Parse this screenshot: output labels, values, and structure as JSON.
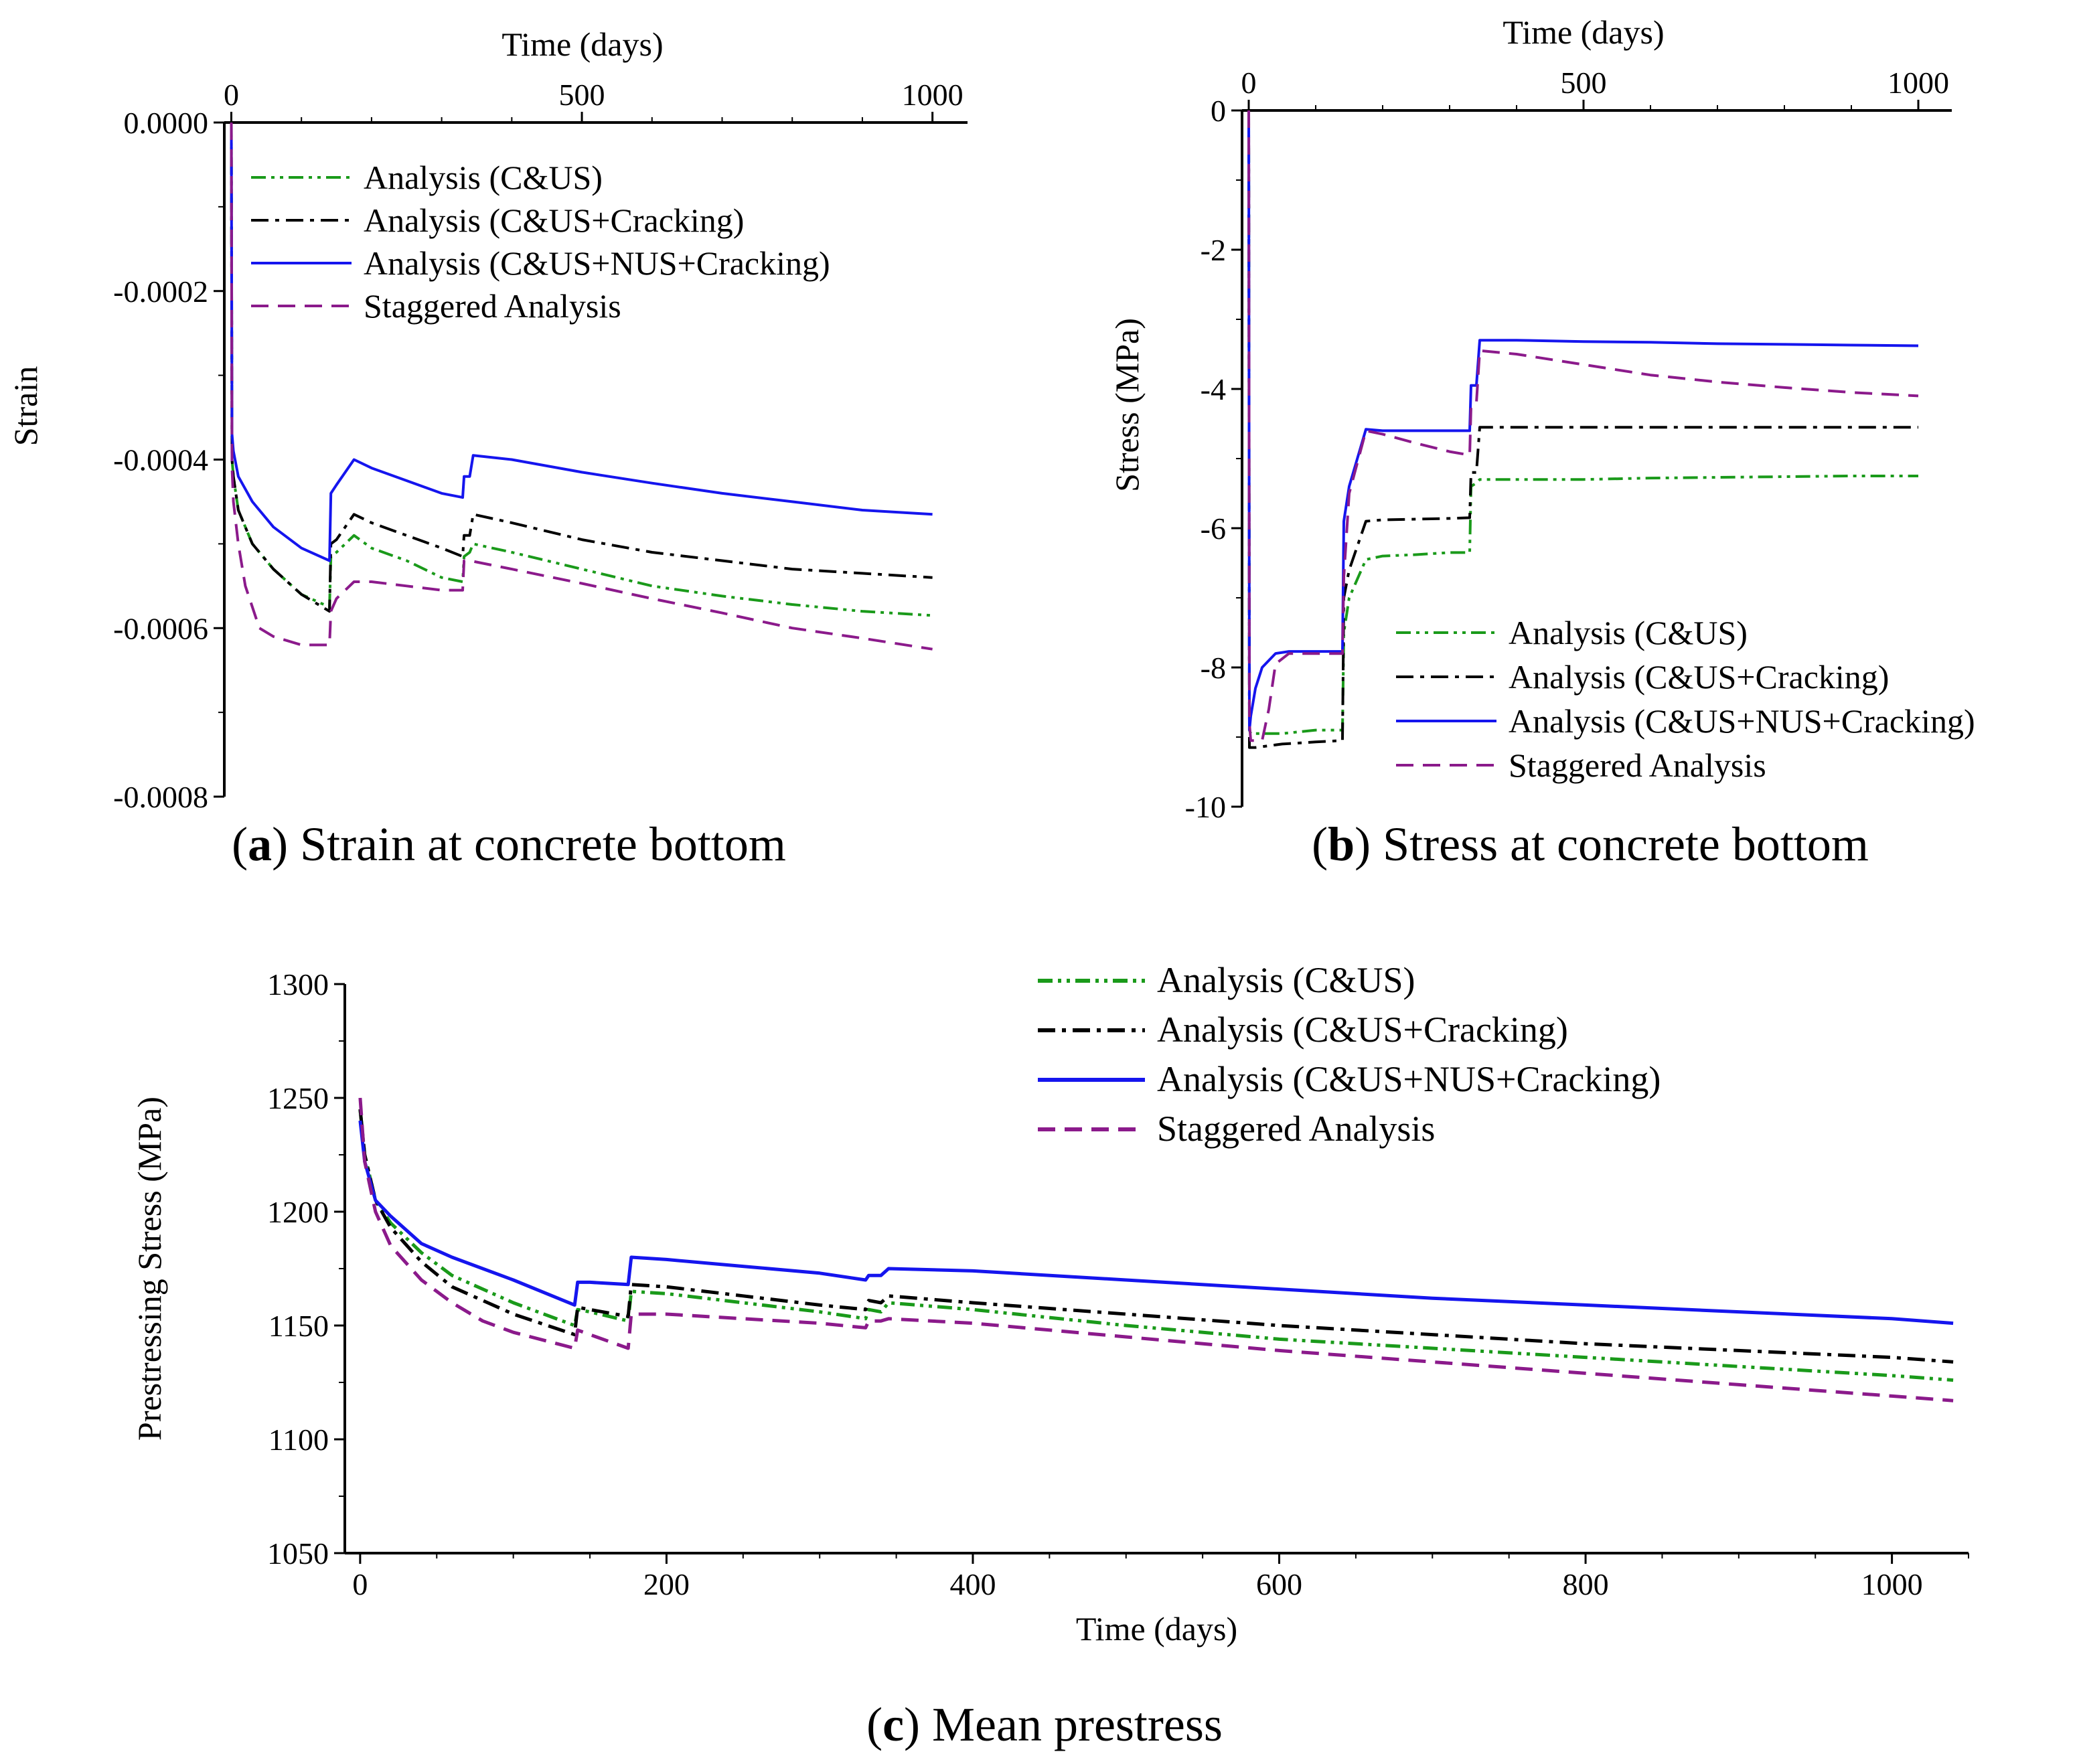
{
  "colors": {
    "cus": "#1a9a1a",
    "cracking": "#000000",
    "nus": "#1515ee",
    "staggered": "#8b1a8b"
  },
  "captions": {
    "a": {
      "letter": "a",
      "text": " Strain at concrete bottom"
    },
    "b": {
      "letter": "b",
      "text": " Stress at concrete bottom"
    },
    "c": {
      "letter": "c",
      "text": " Mean prestress"
    }
  },
  "chart_data": [
    {
      "id": "a",
      "type": "line",
      "xlabel": "Time (days)",
      "ylabel": "Strain",
      "xaxis_position": "top",
      "xlim": [
        -10,
        1050
      ],
      "ylim": [
        -0.0008,
        0.0
      ],
      "xticks": [
        0,
        500,
        1000
      ],
      "xtick_labels": [
        "0",
        "500",
        "1000"
      ],
      "yticks": [
        0,
        -0.0002,
        -0.0004,
        -0.0006,
        -0.0008
      ],
      "ytick_labels": [
        "0.0000",
        "-0.0002",
        "-0.0004",
        "-0.0006",
        "-0.0008"
      ],
      "grid": false,
      "legend_position": "top-left",
      "series": [
        {
          "name": "Analysis (C&US)",
          "key": "cus",
          "x": [
            0,
            1,
            3,
            10,
            30,
            60,
            100,
            140,
            142,
            150,
            175,
            200,
            250,
            300,
            330,
            332,
            340,
            345,
            400,
            500,
            600,
            700,
            800,
            900,
            1000
          ],
          "y": [
            0,
            -0.0004,
            -0.00042,
            -0.00046,
            -0.0005,
            -0.00053,
            -0.00056,
            -0.000575,
            -0.000515,
            -0.00051,
            -0.00049,
            -0.000505,
            -0.00052,
            -0.00054,
            -0.000545,
            -0.000515,
            -0.00051,
            -0.0005,
            -0.00051,
            -0.00053,
            -0.00055,
            -0.000562,
            -0.000572,
            -0.00058,
            -0.000585
          ]
        },
        {
          "name": "Analysis (C&US+Cracking)",
          "key": "cracking",
          "x": [
            0,
            1,
            3,
            10,
            30,
            60,
            100,
            140,
            142,
            150,
            175,
            200,
            250,
            300,
            330,
            332,
            340,
            345,
            400,
            500,
            600,
            700,
            800,
            900,
            1000
          ],
          "y": [
            0,
            -0.0004,
            -0.00042,
            -0.00046,
            -0.0005,
            -0.00053,
            -0.00056,
            -0.00058,
            -0.0005,
            -0.000495,
            -0.000465,
            -0.000475,
            -0.00049,
            -0.000505,
            -0.000515,
            -0.00049,
            -0.00049,
            -0.000465,
            -0.000475,
            -0.000495,
            -0.00051,
            -0.00052,
            -0.00053,
            -0.000535,
            -0.00054
          ]
        },
        {
          "name": "Analysis (C&US+NUS+Cracking)",
          "key": "nus",
          "x": [
            0,
            1,
            3,
            10,
            30,
            60,
            100,
            140,
            142,
            150,
            175,
            200,
            250,
            300,
            330,
            332,
            340,
            345,
            400,
            500,
            600,
            700,
            800,
            900,
            1000
          ],
          "y": [
            0,
            -0.00037,
            -0.00039,
            -0.00042,
            -0.00045,
            -0.00048,
            -0.000505,
            -0.00052,
            -0.00044,
            -0.00043,
            -0.0004,
            -0.00041,
            -0.000425,
            -0.00044,
            -0.000445,
            -0.00042,
            -0.00042,
            -0.000395,
            -0.0004,
            -0.000415,
            -0.000428,
            -0.00044,
            -0.00045,
            -0.00046,
            -0.000465
          ]
        },
        {
          "name": "Staggered Analysis",
          "key": "staggered",
          "x": [
            0,
            1,
            3,
            10,
            20,
            40,
            60,
            100,
            140,
            142,
            150,
            175,
            200,
            250,
            300,
            330,
            332,
            340,
            400,
            500,
            600,
            700,
            800,
            900,
            1000
          ],
          "y": [
            0,
            -0.00041,
            -0.00045,
            -0.0005,
            -0.00055,
            -0.0006,
            -0.00061,
            -0.00062,
            -0.00062,
            -0.00058,
            -0.000565,
            -0.000545,
            -0.000545,
            -0.00055,
            -0.000555,
            -0.000555,
            -0.00052,
            -0.00052,
            -0.00053,
            -0.000547,
            -0.000565,
            -0.000582,
            -0.0006,
            -0.000612,
            -0.000625
          ]
        }
      ]
    },
    {
      "id": "b",
      "type": "line",
      "xlabel": "Time (days)",
      "ylabel": "Stress (MPa)",
      "xaxis_position": "top",
      "xlim": [
        -10,
        1050
      ],
      "ylim": [
        -10,
        0
      ],
      "xticks": [
        0,
        500,
        1000
      ],
      "xtick_labels": [
        "0",
        "500",
        "1000"
      ],
      "yticks": [
        0,
        -2,
        -4,
        -6,
        -8,
        -10
      ],
      "ytick_labels": [
        "0",
        "-2",
        "-4",
        "-6",
        "-8",
        "-10"
      ],
      "grid": false,
      "legend_position": "bottom-right",
      "series": [
        {
          "name": "Analysis (C&US)",
          "key": "cus",
          "x": [
            0,
            1,
            3,
            10,
            50,
            100,
            140,
            142,
            150,
            175,
            200,
            250,
            300,
            330,
            332,
            340,
            345,
            400,
            500,
            600,
            700,
            800,
            900,
            1000
          ],
          "y": [
            0,
            -8.9,
            -8.95,
            -8.95,
            -8.95,
            -8.9,
            -8.9,
            -7.5,
            -7.0,
            -6.45,
            -6.4,
            -6.38,
            -6.35,
            -6.35,
            -5.4,
            -5.35,
            -5.3,
            -5.3,
            -5.3,
            -5.28,
            -5.27,
            -5.26,
            -5.25,
            -5.25
          ]
        },
        {
          "name": "Analysis (C&US+Cracking)",
          "key": "cracking",
          "x": [
            0,
            1,
            3,
            10,
            50,
            100,
            140,
            142,
            150,
            175,
            200,
            250,
            300,
            330,
            332,
            340,
            345,
            400,
            500,
            600,
            700,
            800,
            900,
            1000
          ],
          "y": [
            0,
            -9.15,
            -9.15,
            -9.15,
            -9.1,
            -9.07,
            -9.05,
            -7.0,
            -6.6,
            -5.9,
            -5.88,
            -5.87,
            -5.86,
            -5.85,
            -5.2,
            -5.2,
            -4.55,
            -4.55,
            -4.55,
            -4.55,
            -4.55,
            -4.55,
            -4.55,
            -4.55
          ]
        },
        {
          "name": "Analysis (C&US+NUS+Cracking)",
          "key": "nus",
          "x": [
            0,
            1,
            3,
            10,
            20,
            40,
            60,
            100,
            140,
            142,
            150,
            175,
            200,
            250,
            300,
            330,
            332,
            340,
            345,
            400,
            500,
            600,
            700,
            800,
            900,
            1000
          ],
          "y": [
            0,
            -8.9,
            -8.7,
            -8.3,
            -8.0,
            -7.8,
            -7.77,
            -7.77,
            -7.77,
            -5.9,
            -5.4,
            -4.58,
            -4.6,
            -4.6,
            -4.6,
            -4.6,
            -3.95,
            -3.95,
            -3.3,
            -3.3,
            -3.32,
            -3.33,
            -3.35,
            -3.36,
            -3.37,
            -3.38
          ]
        },
        {
          "name": "Staggered Analysis",
          "key": "staggered",
          "x": [
            0,
            1,
            3,
            20,
            30,
            40,
            60,
            100,
            140,
            142,
            150,
            175,
            200,
            250,
            300,
            330,
            332,
            340,
            345,
            400,
            500,
            600,
            700,
            800,
            900,
            1000
          ],
          "y": [
            0,
            -8.8,
            -9.05,
            -9.05,
            -8.6,
            -7.95,
            -7.8,
            -7.8,
            -7.8,
            -6.7,
            -5.5,
            -4.6,
            -4.65,
            -4.78,
            -4.9,
            -4.95,
            -4.25,
            -4.2,
            -3.45,
            -3.5,
            -3.65,
            -3.8,
            -3.9,
            -3.98,
            -4.05,
            -4.1
          ]
        }
      ]
    },
    {
      "id": "c",
      "type": "line",
      "xlabel": "Time (days)",
      "ylabel": "Prestressing Stress (MPa)",
      "xaxis_position": "bottom",
      "xlim": [
        -10,
        1050
      ],
      "ylim": [
        1050,
        1300
      ],
      "xticks": [
        0,
        200,
        400,
        600,
        800,
        1000
      ],
      "xtick_labels": [
        "0",
        "200",
        "400",
        "600",
        "800",
        "1000"
      ],
      "yticks": [
        1050,
        1100,
        1150,
        1200,
        1250,
        1300
      ],
      "ytick_labels": [
        "1050",
        "1100",
        "1150",
        "1200",
        "1250",
        "1300"
      ],
      "grid": false,
      "legend_position": "top-right",
      "series": [
        {
          "name": "Analysis (C&US)",
          "key": "cus",
          "x": [
            0,
            3,
            10,
            20,
            40,
            60,
            100,
            140,
            142,
            150,
            175,
            177,
            200,
            250,
            300,
            330,
            332,
            340,
            345,
            400,
            500,
            600,
            700,
            800,
            900,
            1000,
            1040
          ],
          "y": [
            1245,
            1225,
            1205,
            1195,
            1182,
            1172,
            1160,
            1150,
            1157,
            1156,
            1152,
            1165,
            1164,
            1160,
            1156,
            1153,
            1157,
            1156,
            1160,
            1157,
            1150,
            1144,
            1140,
            1136,
            1132,
            1128,
            1126
          ]
        },
        {
          "name": "Analysis (C&US+Cracking)",
          "key": "cracking",
          "x": [
            0,
            3,
            10,
            20,
            40,
            60,
            100,
            140,
            142,
            150,
            175,
            177,
            200,
            250,
            300,
            330,
            332,
            340,
            345,
            400,
            500,
            600,
            700,
            800,
            900,
            1000,
            1040
          ],
          "y": [
            1245,
            1225,
            1205,
            1193,
            1178,
            1167,
            1155,
            1146,
            1158,
            1157,
            1154,
            1168,
            1167,
            1163,
            1159,
            1157,
            1161,
            1160,
            1163,
            1160,
            1155,
            1150,
            1146,
            1142,
            1139,
            1136,
            1134
          ]
        },
        {
          "name": "Analysis (C&US+NUS+Cracking)",
          "key": "nus",
          "x": [
            0,
            3,
            10,
            20,
            40,
            60,
            100,
            140,
            142,
            150,
            175,
            177,
            200,
            250,
            300,
            330,
            332,
            340,
            345,
            400,
            500,
            600,
            700,
            800,
            900,
            1000,
            1040
          ],
          "y": [
            1240,
            1222,
            1205,
            1198,
            1186,
            1180,
            1170,
            1159,
            1169,
            1169,
            1168,
            1180,
            1179,
            1176,
            1173,
            1170,
            1172,
            1172,
            1175,
            1174,
            1170,
            1166,
            1162,
            1159,
            1156,
            1153,
            1151
          ]
        },
        {
          "name": "Staggered Analysis",
          "key": "staggered",
          "x": [
            0,
            3,
            10,
            20,
            40,
            60,
            80,
            100,
            140,
            142,
            150,
            175,
            177,
            200,
            250,
            300,
            330,
            332,
            340,
            345,
            400,
            500,
            600,
            700,
            800,
            900,
            1000,
            1040
          ],
          "y": [
            1250,
            1222,
            1200,
            1185,
            1170,
            1160,
            1152,
            1147,
            1140,
            1148,
            1146,
            1140,
            1155,
            1155,
            1153,
            1151,
            1149,
            1152,
            1152,
            1153,
            1151,
            1145,
            1139,
            1134,
            1129,
            1124,
            1119,
            1117
          ]
        }
      ]
    }
  ]
}
